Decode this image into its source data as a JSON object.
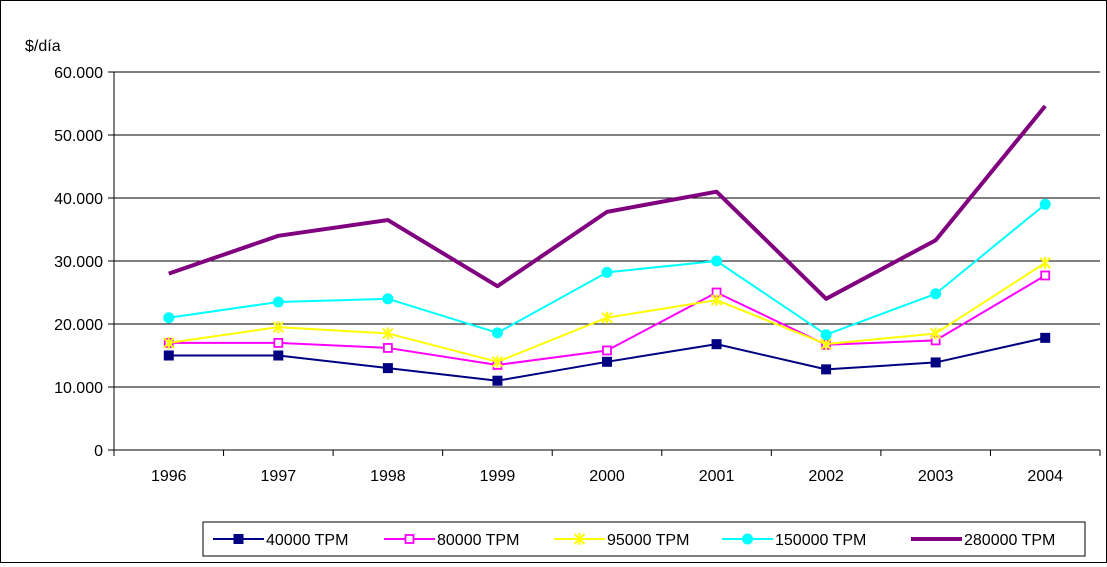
{
  "chart_data": {
    "type": "line",
    "ylabel": "$/día",
    "categories": [
      "1996",
      "1997",
      "1998",
      "1999",
      "2000",
      "2001",
      "2002",
      "2003",
      "2004"
    ],
    "ylim": [
      0,
      60000
    ],
    "yticks": [
      0,
      10000,
      20000,
      30000,
      40000,
      50000,
      60000
    ],
    "ytick_labels": [
      "0",
      "10.000",
      "20.000",
      "30.000",
      "40.000",
      "50.000",
      "60.000"
    ],
    "grid": "horizontal",
    "legend_position": "bottom",
    "series": [
      {
        "name": "40000 TPM",
        "color": "#000080",
        "marker": "square-filled",
        "values": [
          15000,
          15000,
          13000,
          11000,
          14000,
          16800,
          12800,
          13900,
          17800
        ]
      },
      {
        "name": "80000 TPM",
        "color": "#ff00ff",
        "marker": "square-open",
        "values": [
          17000,
          17000,
          16200,
          13500,
          15800,
          25000,
          16700,
          17400,
          27700
        ]
      },
      {
        "name": "95000 TPM",
        "color": "#ffff00",
        "marker": "star",
        "values": [
          17000,
          19500,
          18500,
          14000,
          21000,
          23800,
          16800,
          18500,
          29700
        ]
      },
      {
        "name": "150000 TPM",
        "color": "#00ffff",
        "marker": "circle",
        "values": [
          21000,
          23500,
          24000,
          18600,
          28200,
          30000,
          18300,
          24800,
          39000
        ]
      },
      {
        "name": "280000 TPM",
        "color": "#800080",
        "marker": "none",
        "values": [
          28000,
          34000,
          36500,
          26000,
          37800,
          41000,
          24000,
          33300,
          54600
        ]
      }
    ]
  }
}
